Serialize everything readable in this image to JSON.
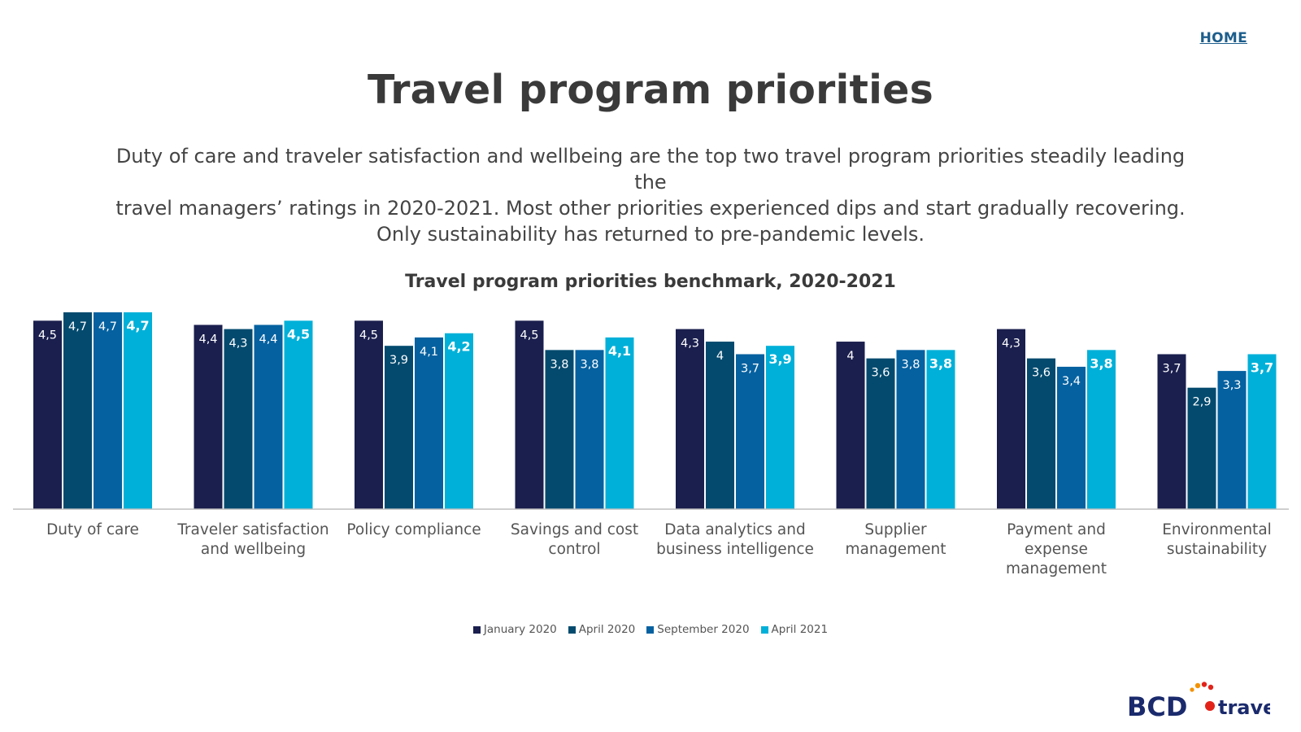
{
  "header": {
    "home_label": "HOME"
  },
  "page": {
    "title": "Travel program priorities",
    "intro_lines": [
      "Duty of care and traveler satisfaction and wellbeing are the top two travel program priorities steadily leading the",
      "travel managers’ ratings in 2020-2021. Most other priorities experienced dips and start gradually recovering.",
      "Only sustainability has returned to pre-pandemic levels."
    ]
  },
  "chart_data": {
    "type": "bar",
    "title": "Travel program priorities benchmark, 2020-2021",
    "categories": [
      [
        "Duty of care"
      ],
      [
        "Traveler satisfaction",
        "and wellbeing"
      ],
      [
        "Policy compliance"
      ],
      [
        "Savings and cost",
        "control"
      ],
      [
        "Data analytics and",
        "business intelligence"
      ],
      [
        "Supplier",
        "management"
      ],
      [
        "Payment and",
        "expense",
        "management"
      ],
      [
        "Environmental",
        "sustainability"
      ]
    ],
    "series": [
      {
        "name": "January 2020",
        "color": "#1a1f4e",
        "values": [
          4.5,
          4.4,
          4.5,
          4.5,
          4.3,
          4.0,
          4.3,
          3.7
        ],
        "labels": [
          "4,5",
          "4,4",
          "4,5",
          "4,5",
          "4,3",
          "4",
          "4,3",
          "3,7"
        ]
      },
      {
        "name": "April 2020",
        "color": "#034a6e",
        "values": [
          4.7,
          4.3,
          3.9,
          3.8,
          4.0,
          3.6,
          3.6,
          2.9
        ],
        "labels": [
          "4,7",
          "4,3",
          "3,9",
          "3,8",
          "4",
          "3,6",
          "3,6",
          "2,9"
        ]
      },
      {
        "name": "September 2020",
        "color": "#0561a0",
        "values": [
          4.7,
          4.4,
          4.1,
          3.8,
          3.7,
          3.8,
          3.4,
          3.3
        ],
        "labels": [
          "4,7",
          "4,4",
          "4,1",
          "3,8",
          "3,7",
          "3,8",
          "3,4",
          "3,3"
        ]
      },
      {
        "name": "April 2021",
        "color": "#00b0d8",
        "values": [
          4.7,
          4.5,
          4.2,
          4.1,
          3.9,
          3.8,
          3.8,
          3.7
        ],
        "labels": [
          "4,7",
          "4,5",
          "4,2",
          "4,1",
          "3,9",
          "3,8",
          "3,8",
          "3,7"
        ]
      }
    ],
    "ylim": [
      0,
      4.7
    ],
    "xlabel": "",
    "ylabel": "",
    "grid": false,
    "legend": "bottom-center"
  },
  "brand": {
    "logo_text_bcd": "BCD",
    "logo_text_travel": "travel",
    "colors": {
      "navy": "#1a2a6c",
      "red": "#e2231a",
      "orange": "#f39200"
    }
  }
}
